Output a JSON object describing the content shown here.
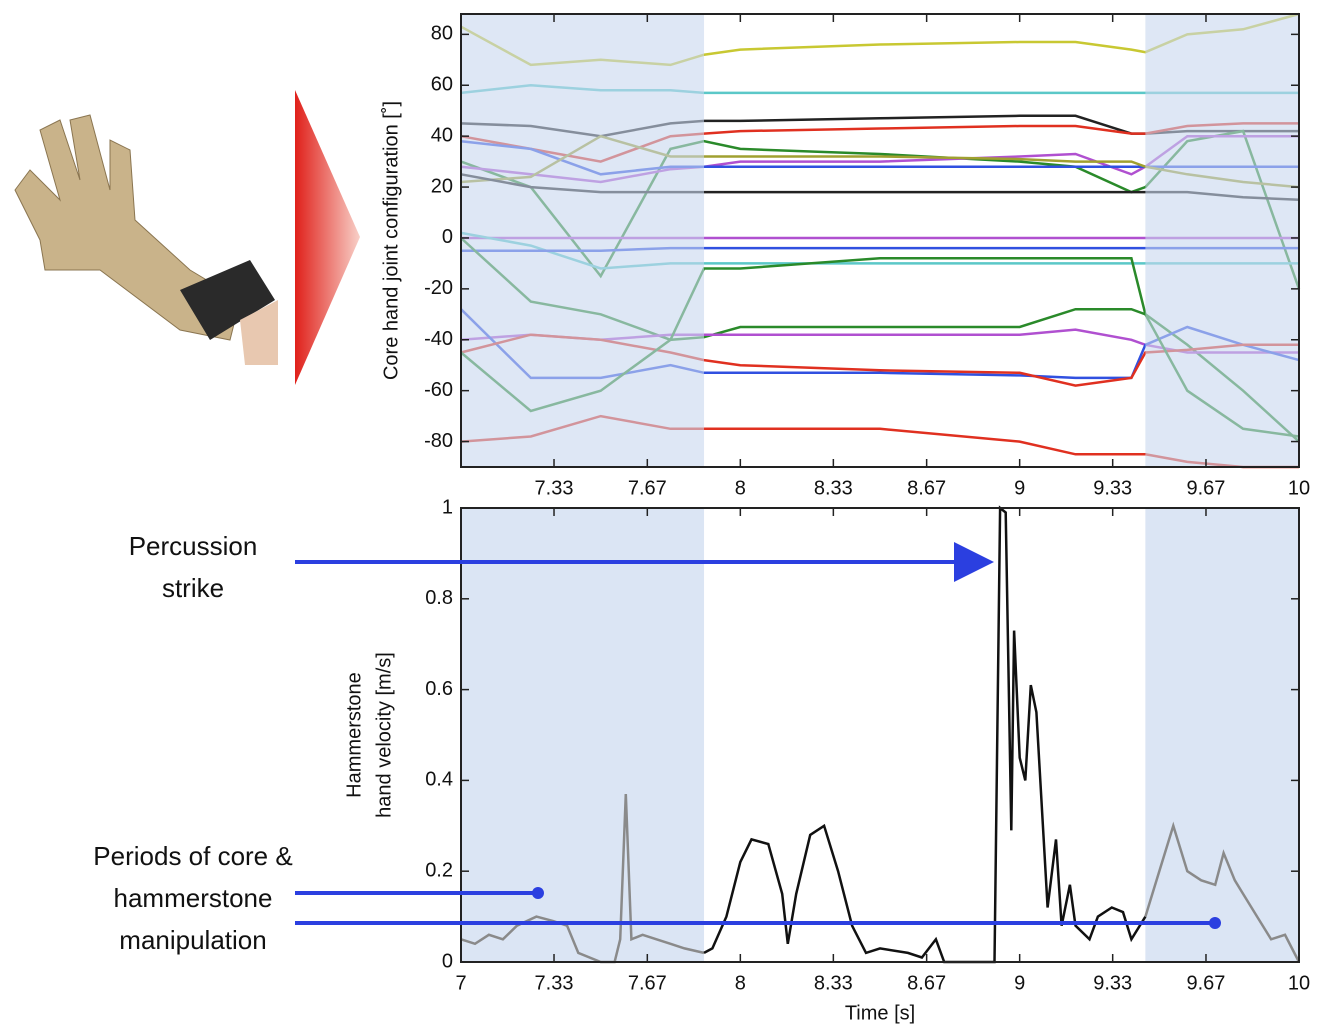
{
  "chart_data": [
    {
      "type": "line",
      "y_label": "Core hand joint configuration [˚]",
      "xlim": [
        7,
        10
      ],
      "ylim": [
        -90,
        88
      ],
      "xticks": [
        {
          "value": 7.333,
          "label": "7.33"
        },
        {
          "value": 7.667,
          "label": "7.67"
        },
        8,
        {
          "value": 8.333,
          "label": "8.33"
        },
        {
          "value": 8.667,
          "label": "8.67"
        },
        9,
        {
          "value": 9.333,
          "label": "9.33"
        },
        {
          "value": 9.667,
          "label": "9.67"
        },
        10
      ],
      "yticks": [
        -80,
        -60,
        -40,
        -20,
        0,
        20,
        40,
        60,
        80
      ],
      "shaded_regions": [
        [
          7,
          7.87
        ],
        [
          9.45,
          10
        ]
      ],
      "shade_color": "#c8d7ef",
      "x": [
        7,
        7.25,
        7.5,
        7.75,
        7.87,
        8,
        8.5,
        9,
        9.2,
        9.4,
        9.45,
        9.6,
        9.8,
        10
      ],
      "series": [
        {
          "color": "#c8c832",
          "values": [
            83,
            68,
            70,
            68,
            72,
            74,
            76,
            77,
            77,
            74,
            73,
            80,
            82,
            88
          ]
        },
        {
          "color": "#5bc8c8",
          "values": [
            57,
            60,
            58,
            58,
            57,
            57,
            57,
            57,
            57,
            57,
            57,
            57,
            57,
            57
          ]
        },
        {
          "color": "#222222",
          "values": [
            45,
            44,
            40,
            45,
            46,
            46,
            47,
            48,
            48,
            41,
            41,
            42,
            42,
            42
          ]
        },
        {
          "color": "#e03020",
          "values": [
            40,
            35,
            30,
            40,
            41,
            42,
            43,
            44,
            44,
            41,
            41,
            44,
            45,
            45
          ]
        },
        {
          "color": "#2a8a2a",
          "values": [
            30,
            20,
            -15,
            35,
            38,
            35,
            33,
            30,
            28,
            18,
            20,
            38,
            42,
            -20
          ]
        },
        {
          "color": "#b050d0",
          "values": [
            28,
            25,
            22,
            27,
            28,
            30,
            30,
            32,
            33,
            25,
            28,
            40,
            40,
            40
          ]
        },
        {
          "color": "#3050e0",
          "values": [
            38,
            35,
            25,
            28,
            28,
            28,
            28,
            28,
            28,
            28,
            28,
            28,
            28,
            28
          ]
        },
        {
          "color": "#a0a030",
          "values": [
            22,
            24,
            40,
            32,
            32,
            32,
            32,
            31,
            30,
            30,
            28,
            25,
            22,
            20
          ]
        },
        {
          "color": "#222222",
          "values": [
            25,
            20,
            18,
            18,
            18,
            18,
            18,
            18,
            18,
            18,
            18,
            18,
            16,
            15
          ]
        },
        {
          "color": "#b050d0",
          "values": [
            0,
            0,
            0,
            0,
            0,
            0,
            0,
            0,
            0,
            0,
            0,
            0,
            0,
            0
          ]
        },
        {
          "color": "#5bc8c8",
          "values": [
            2,
            -3,
            -12,
            -10,
            -10,
            -10,
            -10,
            -10,
            -10,
            -10,
            -10,
            -10,
            -10,
            -10
          ]
        },
        {
          "color": "#3050e0",
          "values": [
            -5,
            -5,
            -5,
            -4,
            -4,
            -4,
            -4,
            -4,
            -4,
            -4,
            -4,
            -4,
            -4,
            -4
          ]
        },
        {
          "color": "#2a8a2a",
          "values": [
            0,
            -25,
            -30,
            -40,
            -39,
            -35,
            -35,
            -35,
            -28,
            -28,
            -30,
            -42,
            -60,
            -80
          ]
        },
        {
          "color": "#b050d0",
          "values": [
            -40,
            -38,
            -40,
            -38,
            -38,
            -38,
            -38,
            -38,
            -36,
            -40,
            -42,
            -45,
            -45,
            -45
          ]
        },
        {
          "color": "#3050e0",
          "values": [
            -28,
            -55,
            -55,
            -50,
            -53,
            -53,
            -53,
            -54,
            -55,
            -55,
            -42,
            -35,
            -42,
            -48
          ]
        },
        {
          "color": "#e03020",
          "values": [
            -45,
            -38,
            -40,
            -45,
            -48,
            -50,
            -52,
            -53,
            -58,
            -55,
            -45,
            -44,
            -42,
            -42
          ]
        },
        {
          "color": "#2a8a2a",
          "values": [
            -45,
            -68,
            -60,
            -40,
            -12,
            -12,
            -8,
            -8,
            -8,
            -8,
            -30,
            -60,
            -75,
            -78
          ]
        },
        {
          "color": "#e03020",
          "values": [
            -80,
            -78,
            -70,
            -75,
            -75,
            -75,
            -75,
            -80,
            -85,
            -85,
            -85,
            -88,
            -90,
            -90
          ]
        }
      ]
    },
    {
      "type": "line",
      "y_label": [
        "Hammerstone",
        "hand velocity [m/s]"
      ],
      "x_label": "Time [s]",
      "xlim": [
        7,
        10
      ],
      "ylim": [
        0,
        1
      ],
      "xticks": [
        7,
        {
          "value": 7.333,
          "label": "7.33"
        },
        {
          "value": 7.667,
          "label": "7.67"
        },
        8,
        {
          "value": 8.333,
          "label": "8.33"
        },
        {
          "value": 8.667,
          "label": "8.67"
        },
        9,
        {
          "value": 9.333,
          "label": "9.33"
        },
        {
          "value": 9.667,
          "label": "9.67"
        },
        10
      ],
      "yticks": [
        0,
        0.2,
        0.4,
        0.6,
        0.8,
        1
      ],
      "shaded_regions": [
        [
          7,
          7.87
        ],
        [
          9.45,
          10
        ]
      ],
      "shade_color": "#dbe5f4",
      "x": [
        7.0,
        7.05,
        7.1,
        7.15,
        7.2,
        7.27,
        7.33,
        7.38,
        7.42,
        7.5,
        7.55,
        7.57,
        7.59,
        7.61,
        7.65,
        7.7,
        7.75,
        7.8,
        7.87,
        7.9,
        7.95,
        8.0,
        8.04,
        8.1,
        8.15,
        8.17,
        8.2,
        8.25,
        8.3,
        8.35,
        8.4,
        8.45,
        8.5,
        8.6,
        8.65,
        8.7,
        8.73,
        8.8,
        8.91,
        8.93,
        8.95,
        8.97,
        8.98,
        9.0,
        9.02,
        9.04,
        9.06,
        9.1,
        9.13,
        9.15,
        9.18,
        9.2,
        9.25,
        9.28,
        9.33,
        9.37,
        9.4,
        9.45,
        9.5,
        9.55,
        9.6,
        9.65,
        9.7,
        9.73,
        9.77,
        9.8,
        9.85,
        9.9,
        9.95,
        10
      ],
      "series": [
        {
          "color": "#111111",
          "shaded_color": "#8a8a8a",
          "values": [
            0.05,
            0.04,
            0.06,
            0.05,
            0.08,
            0.1,
            0.09,
            0.08,
            0.02,
            0.0,
            0.0,
            0.05,
            0.37,
            0.05,
            0.06,
            0.05,
            0.04,
            0.03,
            0.02,
            0.03,
            0.1,
            0.22,
            0.27,
            0.26,
            0.15,
            0.04,
            0.15,
            0.28,
            0.3,
            0.2,
            0.08,
            0.02,
            0.03,
            0.02,
            0.01,
            0.05,
            0.0,
            0.0,
            0.0,
            1.0,
            0.99,
            0.29,
            0.73,
            0.45,
            0.4,
            0.61,
            0.55,
            0.12,
            0.27,
            0.08,
            0.17,
            0.08,
            0.05,
            0.1,
            0.12,
            0.11,
            0.05,
            0.1,
            0.2,
            0.3,
            0.2,
            0.18,
            0.17,
            0.24,
            0.18,
            0.15,
            0.1,
            0.05,
            0.06,
            0.0
          ]
        }
      ],
      "annotations": [
        {
          "lines": [
            "Percussion",
            "strike"
          ]
        },
        {
          "lines": [
            "Periods of core &",
            "hammerstone",
            "manipulation"
          ]
        }
      ]
    }
  ]
}
